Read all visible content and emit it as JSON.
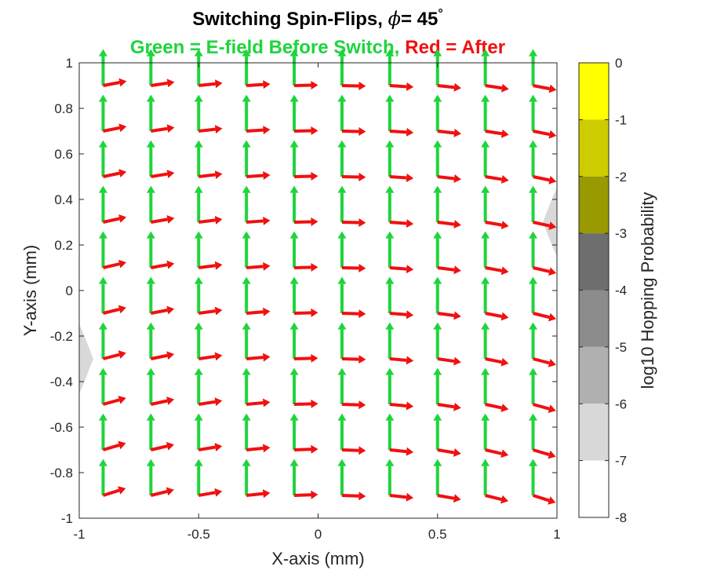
{
  "chart_data": {
    "type": "quiver",
    "title": {
      "prefix": "Switching Spin-Flips, ",
      "symbol": "ϕ",
      "equals_value": "= 45",
      "degree": "°"
    },
    "subtitle": {
      "green_part": "Green = E-field Before Switch,",
      "red_part": "Red = After"
    },
    "xlabel": "X-axis (mm)",
    "ylabel": "Y-axis (mm)",
    "xlim": [
      -1,
      1
    ],
    "ylim": [
      -1,
      1
    ],
    "xticks": [
      -1,
      -0.5,
      0,
      0.5,
      1
    ],
    "xtick_labels": [
      "-1",
      "-0.5",
      "0",
      "0.5",
      "1"
    ],
    "yticks": [
      1,
      0.8,
      0.6,
      0.4,
      0.2,
      0,
      -0.2,
      -0.4,
      -0.6,
      -0.8,
      -1
    ],
    "ytick_labels": [
      "1",
      "0.8",
      "0.6",
      "0.4",
      "0.2",
      "0",
      "-0.2",
      "-0.4",
      "-0.6",
      "-0.8",
      "-1"
    ],
    "grid_x": [
      -0.9,
      -0.7,
      -0.5,
      -0.3,
      -0.1,
      0.1,
      0.3,
      0.5,
      0.7,
      0.9
    ],
    "grid_y": [
      -0.9,
      -0.7,
      -0.5,
      -0.3,
      -0.1,
      0.1,
      0.3,
      0.5,
      0.7,
      0.9
    ],
    "series": [
      {
        "name": "Green = E-field Before Switch",
        "color": "#1ed43c",
        "direction_deg": 90,
        "length": 0.16
      },
      {
        "name": "Red = After",
        "color": "#f01010",
        "direction": "azimuthal about (0, -3.6)",
        "length": 0.1
      }
    ],
    "colorbar": {
      "label": "log10 Hopping Probability",
      "ticks": [
        0,
        -1,
        -2,
        -3,
        -4,
        -5,
        -6,
        -7,
        -8
      ],
      "tick_labels": [
        "0",
        "-1",
        "-2",
        "-3",
        "-4",
        "-5",
        "-6",
        "-7",
        "-8"
      ],
      "levels": [
        {
          "from": -1,
          "to": 0,
          "color": "#ffff00"
        },
        {
          "from": -2,
          "to": -1,
          "color": "#cccc00"
        },
        {
          "from": -3,
          "to": -2,
          "color": "#999900"
        },
        {
          "from": -4,
          "to": -3,
          "color": "#6e6e6e"
        },
        {
          "from": -5,
          "to": -4,
          "color": "#8c8c8c"
        },
        {
          "from": -6,
          "to": -5,
          "color": "#b0b0b0"
        },
        {
          "from": -7,
          "to": -6,
          "color": "#d8d8d8"
        },
        {
          "from": -8,
          "to": -7,
          "color": "#ffffff"
        }
      ]
    },
    "background_regions": [
      {
        "side": "left",
        "y_range": [
          -0.45,
          -0.15
        ],
        "level": -6,
        "color": "#d9d9d9"
      },
      {
        "side": "right",
        "y_range": [
          0.15,
          0.45
        ],
        "level": -6,
        "color": "#d9d9d9"
      }
    ]
  }
}
